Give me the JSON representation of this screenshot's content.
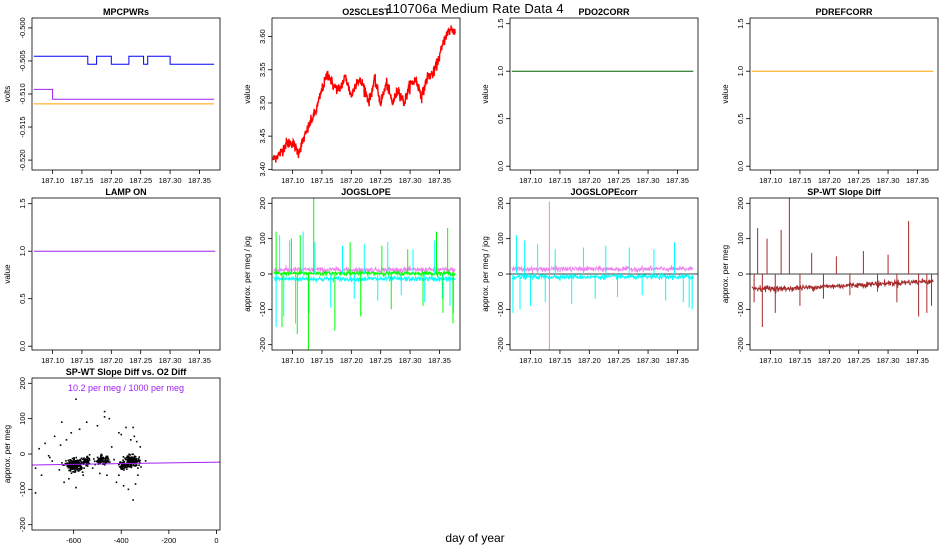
{
  "page": {
    "title": "110706a   Medium Rate Data 4",
    "xlabel": "day of year"
  },
  "colors": {
    "blue": "#0000ff",
    "purple": "#a020f0",
    "orange": "#ffa500",
    "red": "#ff0000",
    "darkgreen": "#006400",
    "green": "#00ff00",
    "violet": "#ee82ee",
    "cyan": "#00ffff",
    "brown": "#a52a2a",
    "black": "#000000"
  },
  "chart_data": [
    {
      "id": "mpcpwrs",
      "type": "line",
      "title": "MPCPWRs",
      "ylabel": "volts",
      "xlim": [
        187.065,
        187.385
      ],
      "ylim": [
        -0.5215,
        -0.4985
      ],
      "xticks": [
        187.1,
        187.15,
        187.2,
        187.25,
        187.3,
        187.35
      ],
      "xtick_labels": [
        "187.10",
        "187.15",
        "187.20",
        "187.25",
        "187.30",
        "187.35"
      ],
      "yticks": [
        -0.52,
        -0.515,
        -0.51,
        -0.505,
        -0.5
      ],
      "ytick_labels": [
        "-0.520",
        "-0.515",
        "-0.510",
        "-0.505",
        "-0.500"
      ],
      "series": [
        {
          "color": "blue",
          "kind": "step",
          "x": [
            187.068,
            187.16,
            187.16,
            187.175,
            187.175,
            187.2,
            187.2,
            187.23,
            187.23,
            187.255,
            187.255,
            187.262,
            187.262,
            187.3,
            187.3,
            187.318,
            187.318,
            187.375
          ],
          "y": [
            -0.5043,
            -0.5043,
            -0.5055,
            -0.5055,
            -0.5043,
            -0.5043,
            -0.5055,
            -0.5055,
            -0.5043,
            -0.5043,
            -0.5055,
            -0.5055,
            -0.5043,
            -0.5043,
            -0.5055,
            -0.5055,
            -0.5055,
            -0.5055
          ]
        },
        {
          "color": "purple",
          "kind": "step",
          "x": [
            187.068,
            187.1,
            187.1,
            187.108,
            187.108,
            187.375
          ],
          "y": [
            -0.5093,
            -0.5093,
            -0.5108,
            -0.5108,
            -0.5108,
            -0.5108
          ]
        },
        {
          "color": "orange",
          "kind": "step",
          "x": [
            187.068,
            187.375
          ],
          "y": [
            -0.5115,
            -0.5115
          ]
        }
      ]
    },
    {
      "id": "o2sclest",
      "type": "line",
      "title": "O2SCLEST",
      "ylabel": "value",
      "xlim": [
        187.065,
        187.385
      ],
      "ylim": [
        3.399,
        3.628
      ],
      "xticks": [
        187.1,
        187.15,
        187.2,
        187.25,
        187.3,
        187.35
      ],
      "xtick_labels": [
        "187.10",
        "187.15",
        "187.20",
        "187.25",
        "187.30",
        "187.35"
      ],
      "yticks": [
        3.4,
        3.45,
        3.5,
        3.55,
        3.6
      ],
      "ytick_labels": [
        "3.40",
        "3.45",
        "3.50",
        "3.55",
        "3.60"
      ],
      "series": [
        {
          "color": "red",
          "kind": "noisy",
          "x": [
            187.067,
            187.08,
            187.09,
            187.1,
            187.11,
            187.12,
            187.13,
            187.14,
            187.15,
            187.16,
            187.17,
            187.18,
            187.19,
            187.2,
            187.21,
            187.22,
            187.23,
            187.24,
            187.25,
            187.26,
            187.27,
            187.28,
            187.29,
            187.3,
            187.31,
            187.32,
            187.33,
            187.34,
            187.35,
            187.36,
            187.37,
            187.377
          ],
          "y": [
            3.415,
            3.425,
            3.44,
            3.44,
            3.425,
            3.448,
            3.47,
            3.488,
            3.52,
            3.545,
            3.525,
            3.52,
            3.54,
            3.51,
            3.535,
            3.528,
            3.502,
            3.535,
            3.5,
            3.53,
            3.5,
            3.52,
            3.5,
            3.528,
            3.535,
            3.51,
            3.54,
            3.545,
            3.57,
            3.6,
            3.612,
            3.606
          ]
        }
      ]
    },
    {
      "id": "pdo2corr",
      "type": "line",
      "title": "PDO2CORR",
      "ylabel": "value",
      "xlim": [
        187.065,
        187.385
      ],
      "ylim": [
        -0.04,
        1.56
      ],
      "xticks": [
        187.1,
        187.15,
        187.2,
        187.25,
        187.3,
        187.35
      ],
      "xtick_labels": [
        "187.10",
        "187.15",
        "187.20",
        "187.25",
        "187.30",
        "187.35"
      ],
      "yticks": [
        0.0,
        0.5,
        1.0,
        1.5
      ],
      "ytick_labels": [
        "0.0",
        "0.5",
        "1.0",
        "1.5"
      ],
      "series": [
        {
          "color": "darkgreen",
          "kind": "step",
          "x": [
            187.068,
            187.377
          ],
          "y": [
            1.0,
            1.0
          ]
        }
      ]
    },
    {
      "id": "pdrefcorr",
      "type": "line",
      "title": "PDREFCORR",
      "ylabel": "value",
      "xlim": [
        187.065,
        187.385
      ],
      "ylim": [
        -0.04,
        1.56
      ],
      "xticks": [
        187.1,
        187.15,
        187.2,
        187.25,
        187.3,
        187.35
      ],
      "xtick_labels": [
        "187.10",
        "187.15",
        "187.20",
        "187.25",
        "187.30",
        "187.35"
      ],
      "yticks": [
        0.0,
        0.5,
        1.0,
        1.5
      ],
      "ytick_labels": [
        "0.0",
        "0.5",
        "1.0",
        "1.5"
      ],
      "series": [
        {
          "color": "orange",
          "kind": "step",
          "x": [
            187.068,
            187.377
          ],
          "y": [
            1.0,
            1.0
          ]
        }
      ]
    },
    {
      "id": "lampon",
      "type": "line",
      "title": "LAMP ON",
      "ylabel": "value",
      "xlim": [
        187.065,
        187.385
      ],
      "ylim": [
        -0.04,
        1.56
      ],
      "xticks": [
        187.1,
        187.15,
        187.2,
        187.25,
        187.3,
        187.35
      ],
      "xtick_labels": [
        "187.10",
        "187.15",
        "187.20",
        "187.25",
        "187.30",
        "187.35"
      ],
      "yticks": [
        0.0,
        0.5,
        1.0,
        1.5
      ],
      "ytick_labels": [
        "0.0",
        "0.5",
        "1.0",
        "1.5"
      ],
      "series": [
        {
          "color": "purple",
          "kind": "step",
          "x": [
            187.068,
            187.377
          ],
          "y": [
            1.0,
            1.0
          ]
        }
      ]
    },
    {
      "id": "jogslope",
      "type": "line",
      "title": "JOGSLOPE",
      "ylabel": "approx. per meg / jog",
      "xlim": [
        187.065,
        187.385
      ],
      "ylim": [
        -215,
        215
      ],
      "xticks": [
        187.1,
        187.15,
        187.2,
        187.25,
        187.3,
        187.35
      ],
      "xtick_labels": [
        "187.10",
        "187.15",
        "187.20",
        "187.25",
        "187.30",
        "187.35"
      ],
      "yticks": [
        -200,
        -100,
        0,
        100,
        200
      ],
      "ytick_labels": [
        "-200",
        "-100",
        "0",
        "100",
        "200"
      ],
      "series": [
        {
          "color": "violet",
          "kind": "band",
          "x": [
            187.068,
            187.377
          ],
          "y": [
            12,
            12
          ],
          "noise": 6
        },
        {
          "color": "cyan",
          "kind": "band",
          "x": [
            187.068,
            187.377
          ],
          "y": [
            -14,
            -14
          ],
          "noise": 6
        },
        {
          "color": "green",
          "kind": "band",
          "x": [
            187.068,
            187.377
          ],
          "y": [
            2,
            2
          ],
          "noise": 5
        },
        {
          "color": "cyan",
          "kind": "spikes",
          "x": [
            187.072,
            187.078,
            187.085,
            187.095,
            187.105,
            187.118,
            187.128,
            187.138,
            187.165,
            187.185,
            187.205,
            187.222,
            187.245,
            187.262,
            187.285,
            187.305,
            187.325,
            187.342,
            187.355,
            187.368,
            187.374
          ],
          "y": [
            -150,
            110,
            -120,
            95,
            -140,
            120,
            -110,
            90,
            -95,
            80,
            -70,
            85,
            -75,
            90,
            -60,
            70,
            -80,
            95,
            -70,
            -90,
            -110
          ]
        },
        {
          "color": "green",
          "kind": "spikes",
          "x": [
            187.072,
            187.082,
            187.098,
            187.108,
            187.113,
            187.127,
            187.136,
            187.172,
            187.198,
            187.216,
            187.252,
            187.268,
            187.296,
            187.322,
            187.345,
            187.356,
            187.364,
            187.373
          ],
          "y": [
            120,
            -150,
            100,
            -170,
            110,
            -215,
            215,
            -160,
            90,
            -120,
            80,
            -100,
            70,
            -90,
            120,
            -110,
            130,
            -140
          ]
        }
      ]
    },
    {
      "id": "jogslopecorr",
      "type": "line",
      "title": "JOGSLOPEcorr",
      "ylabel": "approx. per meg / jog",
      "xlim": [
        187.065,
        187.385
      ],
      "ylim": [
        -215,
        215
      ],
      "xticks": [
        187.1,
        187.15,
        187.2,
        187.25,
        187.3,
        187.35
      ],
      "xtick_labels": [
        "187.10",
        "187.15",
        "187.20",
        "187.25",
        "187.30",
        "187.35"
      ],
      "yticks": [
        -200,
        -100,
        0,
        100,
        200
      ],
      "ytick_labels": [
        "-200",
        "-100",
        "0",
        "100",
        "200"
      ],
      "hline": 0,
      "series": [
        {
          "color": "violet",
          "kind": "band",
          "x": [
            187.068,
            187.377
          ],
          "y": [
            14,
            14
          ],
          "noise": 6
        },
        {
          "color": "cyan",
          "kind": "band",
          "x": [
            187.068,
            187.377
          ],
          "y": [
            -8,
            -8
          ],
          "noise": 6
        },
        {
          "color": "cyan",
          "kind": "spikes",
          "x": [
            187.07,
            187.076,
            187.082,
            187.09,
            187.1,
            187.112,
            187.125,
            187.142,
            187.17,
            187.19,
            187.21,
            187.228,
            187.248,
            187.268,
            187.29,
            187.31,
            187.33,
            187.345,
            187.36,
            187.37,
            187.375
          ],
          "y": [
            -110,
            110,
            -100,
            95,
            -90,
            85,
            -80,
            70,
            -85,
            75,
            -70,
            80,
            -65,
            75,
            -60,
            70,
            -75,
            90,
            -80,
            -95,
            -100
          ]
        },
        {
          "color": "violet",
          "kind": "spikes",
          "x": [
            187.132
          ],
          "y": [
            -215
          ]
        },
        {
          "color": "violet",
          "kind": "spikes",
          "x": [
            187.132
          ],
          "y": [
            205
          ]
        }
      ]
    },
    {
      "id": "spwtslope",
      "type": "line",
      "title": "SP-WT Slope Diff",
      "ylabel": "approx. per meg",
      "xlim": [
        187.065,
        187.385
      ],
      "ylim": [
        -215,
        215
      ],
      "xticks": [
        187.1,
        187.15,
        187.2,
        187.25,
        187.3,
        187.35
      ],
      "xtick_labels": [
        "187.10",
        "187.15",
        "187.20",
        "187.25",
        "187.30",
        "187.35"
      ],
      "yticks": [
        -200,
        -100,
        0,
        100,
        200
      ],
      "ytick_labels": [
        "-200",
        "-100",
        "0",
        "100",
        "200"
      ],
      "hline": 0,
      "series": [
        {
          "color": "brown",
          "kind": "band",
          "x": [
            187.068,
            187.12,
            187.2,
            187.28,
            187.377
          ],
          "y": [
            -40,
            -42,
            -35,
            -28,
            -20
          ],
          "noise": 7
        },
        {
          "color": "brown",
          "kind": "spikes",
          "x": [
            187.072,
            187.078,
            187.086,
            187.094,
            187.108,
            187.118,
            187.132,
            187.15,
            187.17,
            187.19,
            187.212,
            187.235,
            187.258,
            187.282,
            187.3,
            187.315,
            187.335,
            187.352,
            187.366,
            187.374
          ],
          "y": [
            -80,
            130,
            -150,
            100,
            -110,
            125,
            215,
            -90,
            60,
            -70,
            50,
            -60,
            65,
            -50,
            55,
            -80,
            150,
            -120,
            -110,
            -90
          ]
        }
      ]
    },
    {
      "id": "spwtvso2",
      "type": "scatter",
      "title": "SP-WT Slope Diff vs. O2 Diff",
      "ylabel": "approx. per meg",
      "annotation": "10.2 per meg / 1000 per meg",
      "xlim": [
        -775,
        15
      ],
      "ylim": [
        -215,
        215
      ],
      "xticks": [
        -600,
        -400,
        -200,
        0
      ],
      "xtick_labels": [
        "-600",
        "-400",
        "-200",
        "0"
      ],
      "yticks": [
        -200,
        -100,
        0,
        100,
        200
      ],
      "ytick_labels": [
        "-200",
        "-100",
        "0",
        "100",
        "200"
      ],
      "fit": {
        "color": "purple",
        "x": [
          -775,
          15
        ],
        "y": [
          -31,
          -23
        ]
      },
      "clusters": [
        {
          "cx": -595,
          "cy": -32,
          "sx": 18,
          "sy": 8,
          "n": 220
        },
        {
          "cx": -480,
          "cy": -18,
          "sx": 14,
          "sy": 6,
          "n": 90
        },
        {
          "cx": -545,
          "cy": -22,
          "sx": 10,
          "sy": 6,
          "n": 50
        },
        {
          "cx": -355,
          "cy": -20,
          "sx": 16,
          "sy": 8,
          "n": 160
        },
        {
          "cx": -390,
          "cy": -32,
          "sx": 10,
          "sy": 6,
          "n": 60
        }
      ],
      "outliers": {
        "x": [
          -760,
          -745,
          -735,
          -720,
          -700,
          -690,
          -680,
          -660,
          -650,
          -640,
          -630,
          -620,
          -610,
          -600,
          -590,
          -575,
          -560,
          -545,
          -520,
          -500,
          -490,
          -470,
          -460,
          -450,
          -440,
          -420,
          -410,
          -400,
          -390,
          -380,
          -370,
          -360,
          -350,
          -345,
          -340,
          -335,
          -330,
          -320,
          -760,
          -705,
          -655,
          -590,
          -470,
          -460,
          -410,
          -380,
          -350,
          -330
        ],
        "y": [
          -40,
          15,
          -60,
          30,
          -10,
          -20,
          50,
          -45,
          90,
          -80,
          40,
          -70,
          60,
          -50,
          155,
          70,
          -60,
          90,
          -40,
          80,
          -55,
          120,
          -20,
          100,
          20,
          -80,
          -60,
          55,
          -90,
          75,
          -100,
          40,
          -130,
          50,
          -85,
          35,
          -60,
          20,
          -110,
          -5,
          25,
          -95,
          105,
          -60,
          60,
          -15,
          75,
          -40
        ]
      }
    }
  ]
}
